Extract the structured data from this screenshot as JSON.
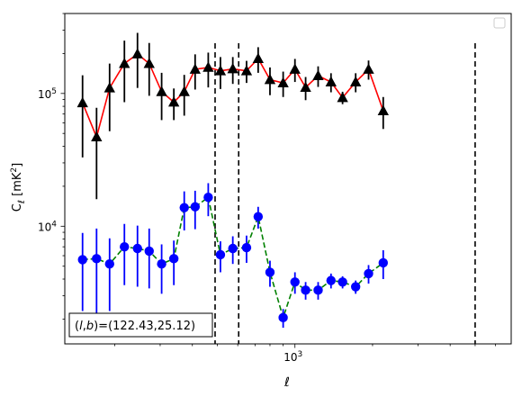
{
  "chart_data": {
    "type": "scatter",
    "xlabel": "ℓ",
    "ylabel": "C_ℓ [mK²]",
    "x_scale": "log",
    "y_scale": "log",
    "xlim": [
      128,
      6900
    ],
    "ylim": [
      1300,
      400000
    ],
    "x_tick_labels": [
      {
        "value": 1000,
        "base": "10",
        "exp": "3"
      }
    ],
    "y_tick_labels": [
      {
        "value": 10000,
        "base": "10",
        "exp": "4"
      },
      {
        "value": 100000,
        "base": "10",
        "exp": "5"
      }
    ],
    "annotation": "(l,b)=(122.43,25.12)",
    "legend": {
      "location": "top-right",
      "entries": []
    },
    "vertical_lines": [
      490,
      605,
      5000
    ],
    "series": [
      {
        "color": "#ff0000",
        "marker": "triangle",
        "marker_color": "#000000",
        "line_style": "solid",
        "x": [
          150,
          170,
          191,
          218,
          245,
          272,
          304,
          339,
          372,
          410,
          461,
          514,
          574,
          649,
          720,
          800,
          900,
          1000,
          1100,
          1230,
          1380,
          1530,
          1720,
          1930,
          2200,
          2470,
          2760,
          3100
        ],
        "y": [
          85000,
          47000,
          110000,
          168000,
          198000,
          168000,
          103000,
          86000,
          103000,
          152000,
          157000,
          148000,
          153000,
          148000,
          183000,
          127000,
          120000,
          152000,
          111000,
          136000,
          122000,
          93000,
          122000,
          152000,
          74000,
          0,
          0,
          0
        ],
        "err": [
          52000,
          31000,
          58000,
          82000,
          88000,
          72000,
          40000,
          23000,
          35000,
          45000,
          46000,
          40000,
          35000,
          28000,
          40000,
          30000,
          26000,
          30000,
          22000,
          24000,
          20000,
          10000,
          20000,
          25000,
          20000,
          0,
          0,
          0
        ]
      },
      {
        "color": "#008000",
        "marker": "circle",
        "marker_color": "#0000ff",
        "line_style": "dashed",
        "x": [
          150,
          170,
          191,
          218,
          245,
          272,
          304,
          339,
          372,
          410,
          461,
          514,
          574,
          649,
          720,
          800,
          900,
          1000,
          1100,
          1230,
          1380,
          1530,
          1720,
          1930,
          2200,
          2470,
          2760,
          3100
        ],
        "y": [
          5600,
          5700,
          5200,
          7000,
          6800,
          6500,
          5200,
          5700,
          13800,
          14000,
          16500,
          6100,
          6800,
          6900,
          11800,
          4500,
          2050,
          3800,
          3300,
          3300,
          3900,
          3800,
          3500,
          4400,
          5300,
          0,
          0,
          0
        ],
        "err": [
          3300,
          3900,
          2900,
          3400,
          3300,
          3100,
          2100,
          2100,
          4500,
          4500,
          4600,
          1600,
          1600,
          1600,
          2200,
          1000,
          330,
          700,
          500,
          500,
          500,
          400,
          400,
          700,
          1300,
          0,
          0,
          0
        ]
      }
    ]
  }
}
